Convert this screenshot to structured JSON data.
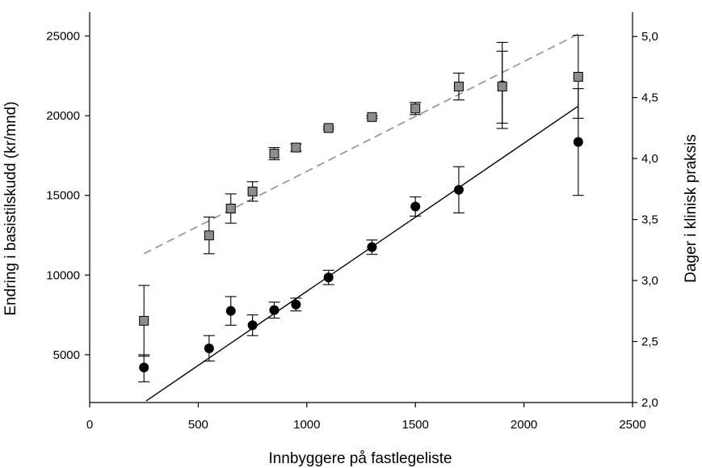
{
  "chart_data": {
    "type": "scatter",
    "title": "",
    "xlabel": "Innbyggere på fastlegeliste",
    "ylabel_left": "Endring i basistilskudd (kr/mnd)",
    "ylabel_right": "Dager i klinisk praksis",
    "xlim": [
      0,
      2500
    ],
    "ylim_left": [
      2000,
      26500
    ],
    "ylim_right": [
      2.0,
      5.2
    ],
    "x_ticks": [
      "0",
      "500",
      "1000",
      "1500",
      "2000",
      "2500"
    ],
    "y_left_ticks": [
      "5000",
      "10000",
      "15000",
      "20000",
      "25000"
    ],
    "y_right_ticks": [
      "2,0",
      "2,5",
      "3,0",
      "3,5",
      "4,0",
      "4,5",
      "5,0"
    ],
    "grid": false,
    "series": [
      {
        "axis": "left",
        "marker": "circle",
        "points": [
          {
            "x": 250,
            "y": 4200,
            "lo": 3300,
            "hi": 5000
          },
          {
            "x": 550,
            "y": 5400,
            "lo": 4600,
            "hi": 6200
          },
          {
            "x": 650,
            "y": 7750,
            "lo": 6850,
            "hi": 8650
          },
          {
            "x": 750,
            "y": 6850,
            "lo": 6200,
            "hi": 7500
          },
          {
            "x": 850,
            "y": 7800,
            "lo": 7300,
            "hi": 8300
          },
          {
            "x": 950,
            "y": 8150,
            "lo": 7750,
            "hi": 8550
          },
          {
            "x": 1100,
            "y": 9850,
            "lo": 9400,
            "hi": 10300
          },
          {
            "x": 1300,
            "y": 11750,
            "lo": 11300,
            "hi": 12200
          },
          {
            "x": 1500,
            "y": 14300,
            "lo": 13700,
            "hi": 14900
          },
          {
            "x": 1700,
            "y": 15350,
            "lo": 13900,
            "hi": 16800
          },
          {
            "x": 1900,
            "y": 21900,
            "lo": 19200,
            "hi": 24600
          },
          {
            "x": 2250,
            "y": 18350,
            "lo": 15000,
            "hi": 21700
          }
        ],
        "trend": {
          "x": [
            260,
            2250
          ],
          "y": [
            2100,
            20600
          ]
        }
      },
      {
        "axis": "right",
        "marker": "square",
        "points": [
          {
            "x": 250,
            "y": 2.67,
            "lo": 2.38,
            "hi": 2.96
          },
          {
            "x": 550,
            "y": 3.37,
            "lo": 3.22,
            "hi": 3.52
          },
          {
            "x": 650,
            "y": 3.59,
            "lo": 3.47,
            "hi": 3.71
          },
          {
            "x": 750,
            "y": 3.73,
            "lo": 3.65,
            "hi": 3.81
          },
          {
            "x": 850,
            "y": 4.04,
            "lo": 3.99,
            "hi": 4.09
          },
          {
            "x": 950,
            "y": 4.09,
            "lo": 4.06,
            "hi": 4.12
          },
          {
            "x": 1100,
            "y": 4.25,
            "lo": 4.24,
            "hi": 4.26
          },
          {
            "x": 1300,
            "y": 4.34,
            "lo": 4.33,
            "hi": 4.35
          },
          {
            "x": 1500,
            "y": 4.41,
            "lo": 4.36,
            "hi": 4.46
          },
          {
            "x": 1700,
            "y": 4.59,
            "lo": 4.48,
            "hi": 4.7
          },
          {
            "x": 1900,
            "y": 4.59,
            "lo": 4.29,
            "hi": 4.88
          },
          {
            "x": 2250,
            "y": 4.67,
            "lo": 4.33,
            "hi": 5.01
          }
        ],
        "trend": {
          "x": [
            250,
            2250
          ],
          "y": [
            3.22,
            5.02
          ]
        }
      }
    ]
  }
}
